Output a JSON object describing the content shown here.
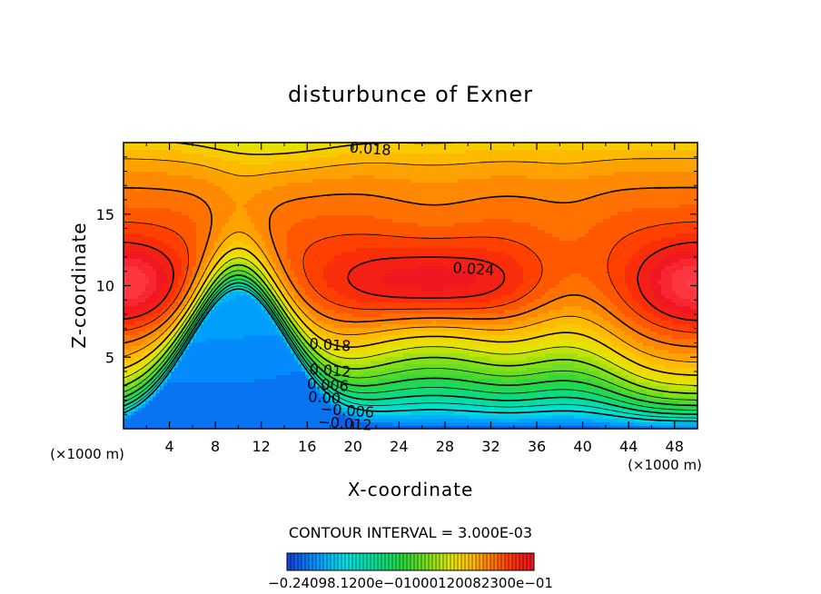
{
  "chart_data": {
    "type": "contour",
    "title": "disturbunce of Exner",
    "xlabel": "X-coordinate",
    "ylabel": "Z-coordinate",
    "x_unit": "(×1000 m)",
    "y_unit": "(×1000 m)",
    "xlim": [
      0,
      50
    ],
    "ylim": [
      0,
      20
    ],
    "x_ticks": [
      "4",
      "8",
      "12",
      "16",
      "20",
      "24",
      "28",
      "32",
      "36",
      "40",
      "44",
      "48"
    ],
    "y_ticks": [
      "5",
      "10",
      "15"
    ],
    "contour_interval_text": "CONTOUR INTERVAL = 3.000E-03",
    "colorbar_labels_text": "−0.24098.1200e−01000120082300e−01",
    "contour_labels": [
      {
        "text": "0.018",
        "x": 21.5,
        "z": 19.6
      },
      {
        "text": "0.024",
        "x": 30.5,
        "z": 11.2
      },
      {
        "text": "0.018",
        "x": 18.0,
        "z": 5.9
      },
      {
        "text": "0.012",
        "x": 18.0,
        "z": 4.1
      },
      {
        "text": "0.006",
        "x": 17.8,
        "z": 3.1
      },
      {
        "text": "0.00",
        "x": 17.5,
        "z": 2.2
      },
      {
        "text": "−0.006",
        "x": 19.5,
        "z": 1.3
      },
      {
        "text": "−0.012",
        "x": 19.3,
        "z": 0.4
      }
    ],
    "contour_levels": [
      -0.012,
      -0.009,
      -0.006,
      -0.003,
      0.0,
      0.003,
      0.006,
      0.009,
      0.012,
      0.015,
      0.018,
      0.021,
      0.024
    ],
    "field_range": [
      -0.024,
      0.027
    ]
  }
}
